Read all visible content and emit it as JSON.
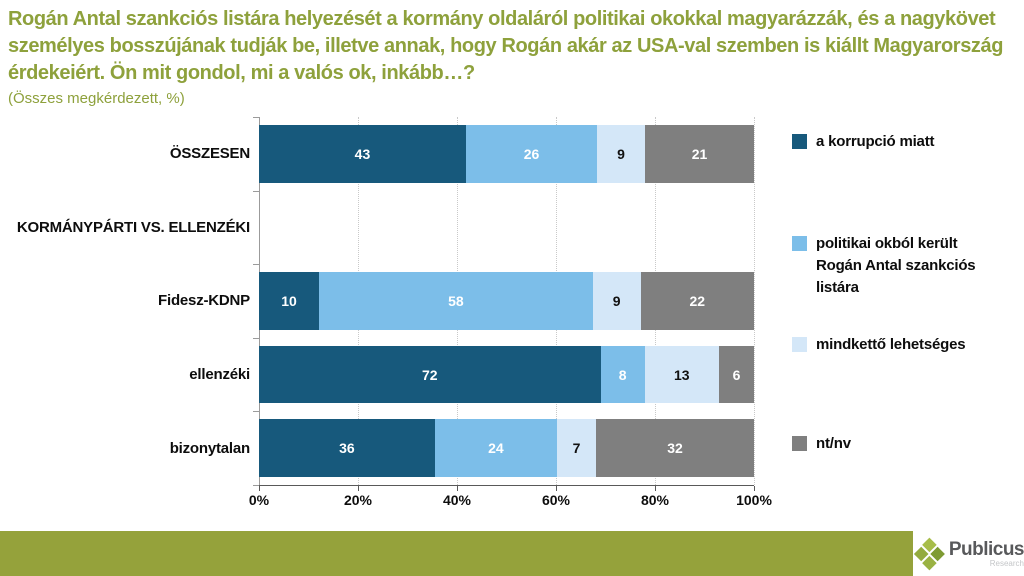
{
  "slide": {
    "title": "Rogán Antal szankciós listára helyezését a kormány oldaláról politikai okokkal magyarázzák, és a nagykövet személyes bosszújának tudják be, illetve annak, hogy Rogán akár az USA-val szemben is kiállt Magyarország érdekeiért. Ön mit gondol, mi a valós ok, inkább…?",
    "subtitle": "(Összes megkérdezett, %)",
    "title_color": "#8EA13C"
  },
  "chart_data": {
    "type": "bar",
    "orientation": "horizontal",
    "stacked": true,
    "categories": [
      "ÖSSZESEN",
      "KORMÁNYPÁRTI VS. ELLENZÉKI",
      "Fidesz-KDNP",
      "ellenzéki",
      "bizonytalan"
    ],
    "series": [
      {
        "name": "a korrupció miatt",
        "color": "#17597C",
        "label_color": "#ffffff",
        "values": [
          43,
          null,
          10,
          72,
          36
        ]
      },
      {
        "name": "politikai okból került Rogán Antal szankciós listára",
        "color": "#7CBEE9",
        "label_color": "#ffffff",
        "values": [
          26,
          null,
          58,
          8,
          24
        ]
      },
      {
        "name": "mindkettő lehetséges",
        "color": "#D4E7F8",
        "label_color": "#111111",
        "values": [
          9,
          null,
          9,
          13,
          7
        ]
      },
      {
        "name": "nt/nv",
        "color": "#7F7F7F",
        "label_color": "#ffffff",
        "values": [
          21,
          null,
          22,
          6,
          32
        ]
      }
    ],
    "x_ticks": [
      "0%",
      "20%",
      "40%",
      "60%",
      "80%",
      "100%"
    ],
    "xlim": [
      0,
      100
    ],
    "grid": "vertical-dotted",
    "legend_position": "right",
    "value_labels": "inside-center"
  },
  "legend": {
    "items": [
      {
        "label": "a korrupció miatt",
        "color": "#17597C"
      },
      {
        "label": "politikai okból került\nRogán Antal szankciós\nlistára",
        "color": "#7CBEE9"
      },
      {
        "label": "mindkettő lehetséges",
        "color": "#D4E7F8"
      },
      {
        "label": "nt/nv",
        "color": "#7F7F7F"
      }
    ]
  },
  "footer": {
    "bar_color": "#95A23B",
    "brand": "Publicus",
    "brand_sub": "Research"
  }
}
